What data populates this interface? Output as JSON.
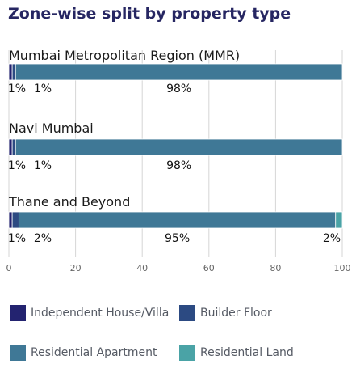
{
  "chart_data": {
    "type": "bar",
    "orientation": "horizontal",
    "stacked": true,
    "title": "Zone-wise split by property type",
    "categories": [
      "Mumbai Metropolitan Region (MMR)",
      "Navi Mumbai",
      "Thane and Beyond"
    ],
    "series": [
      {
        "name": "Independent House/Villa",
        "color": "#232370",
        "values": [
          1,
          1,
          1
        ]
      },
      {
        "name": "Builder Floor",
        "color": "#2c4a82",
        "values": [
          1,
          1,
          2
        ]
      },
      {
        "name": "Residential Apartment",
        "color": "#3f7896",
        "values": [
          98,
          98,
          95
        ]
      },
      {
        "name": "Residential Land",
        "color": "#4aa3a6",
        "values": [
          0,
          0,
          2
        ]
      }
    ],
    "data_labels": [
      [
        "1%",
        "1%",
        "98%"
      ],
      [
        "1%",
        "1%",
        "98%"
      ],
      [
        "1%",
        "2%",
        "95%",
        "2%"
      ]
    ],
    "x_ticks": [
      "0",
      "20",
      "40",
      "60",
      "80",
      "100"
    ],
    "xlim": [
      0,
      100
    ],
    "grid": true,
    "legend_position": "bottom"
  }
}
